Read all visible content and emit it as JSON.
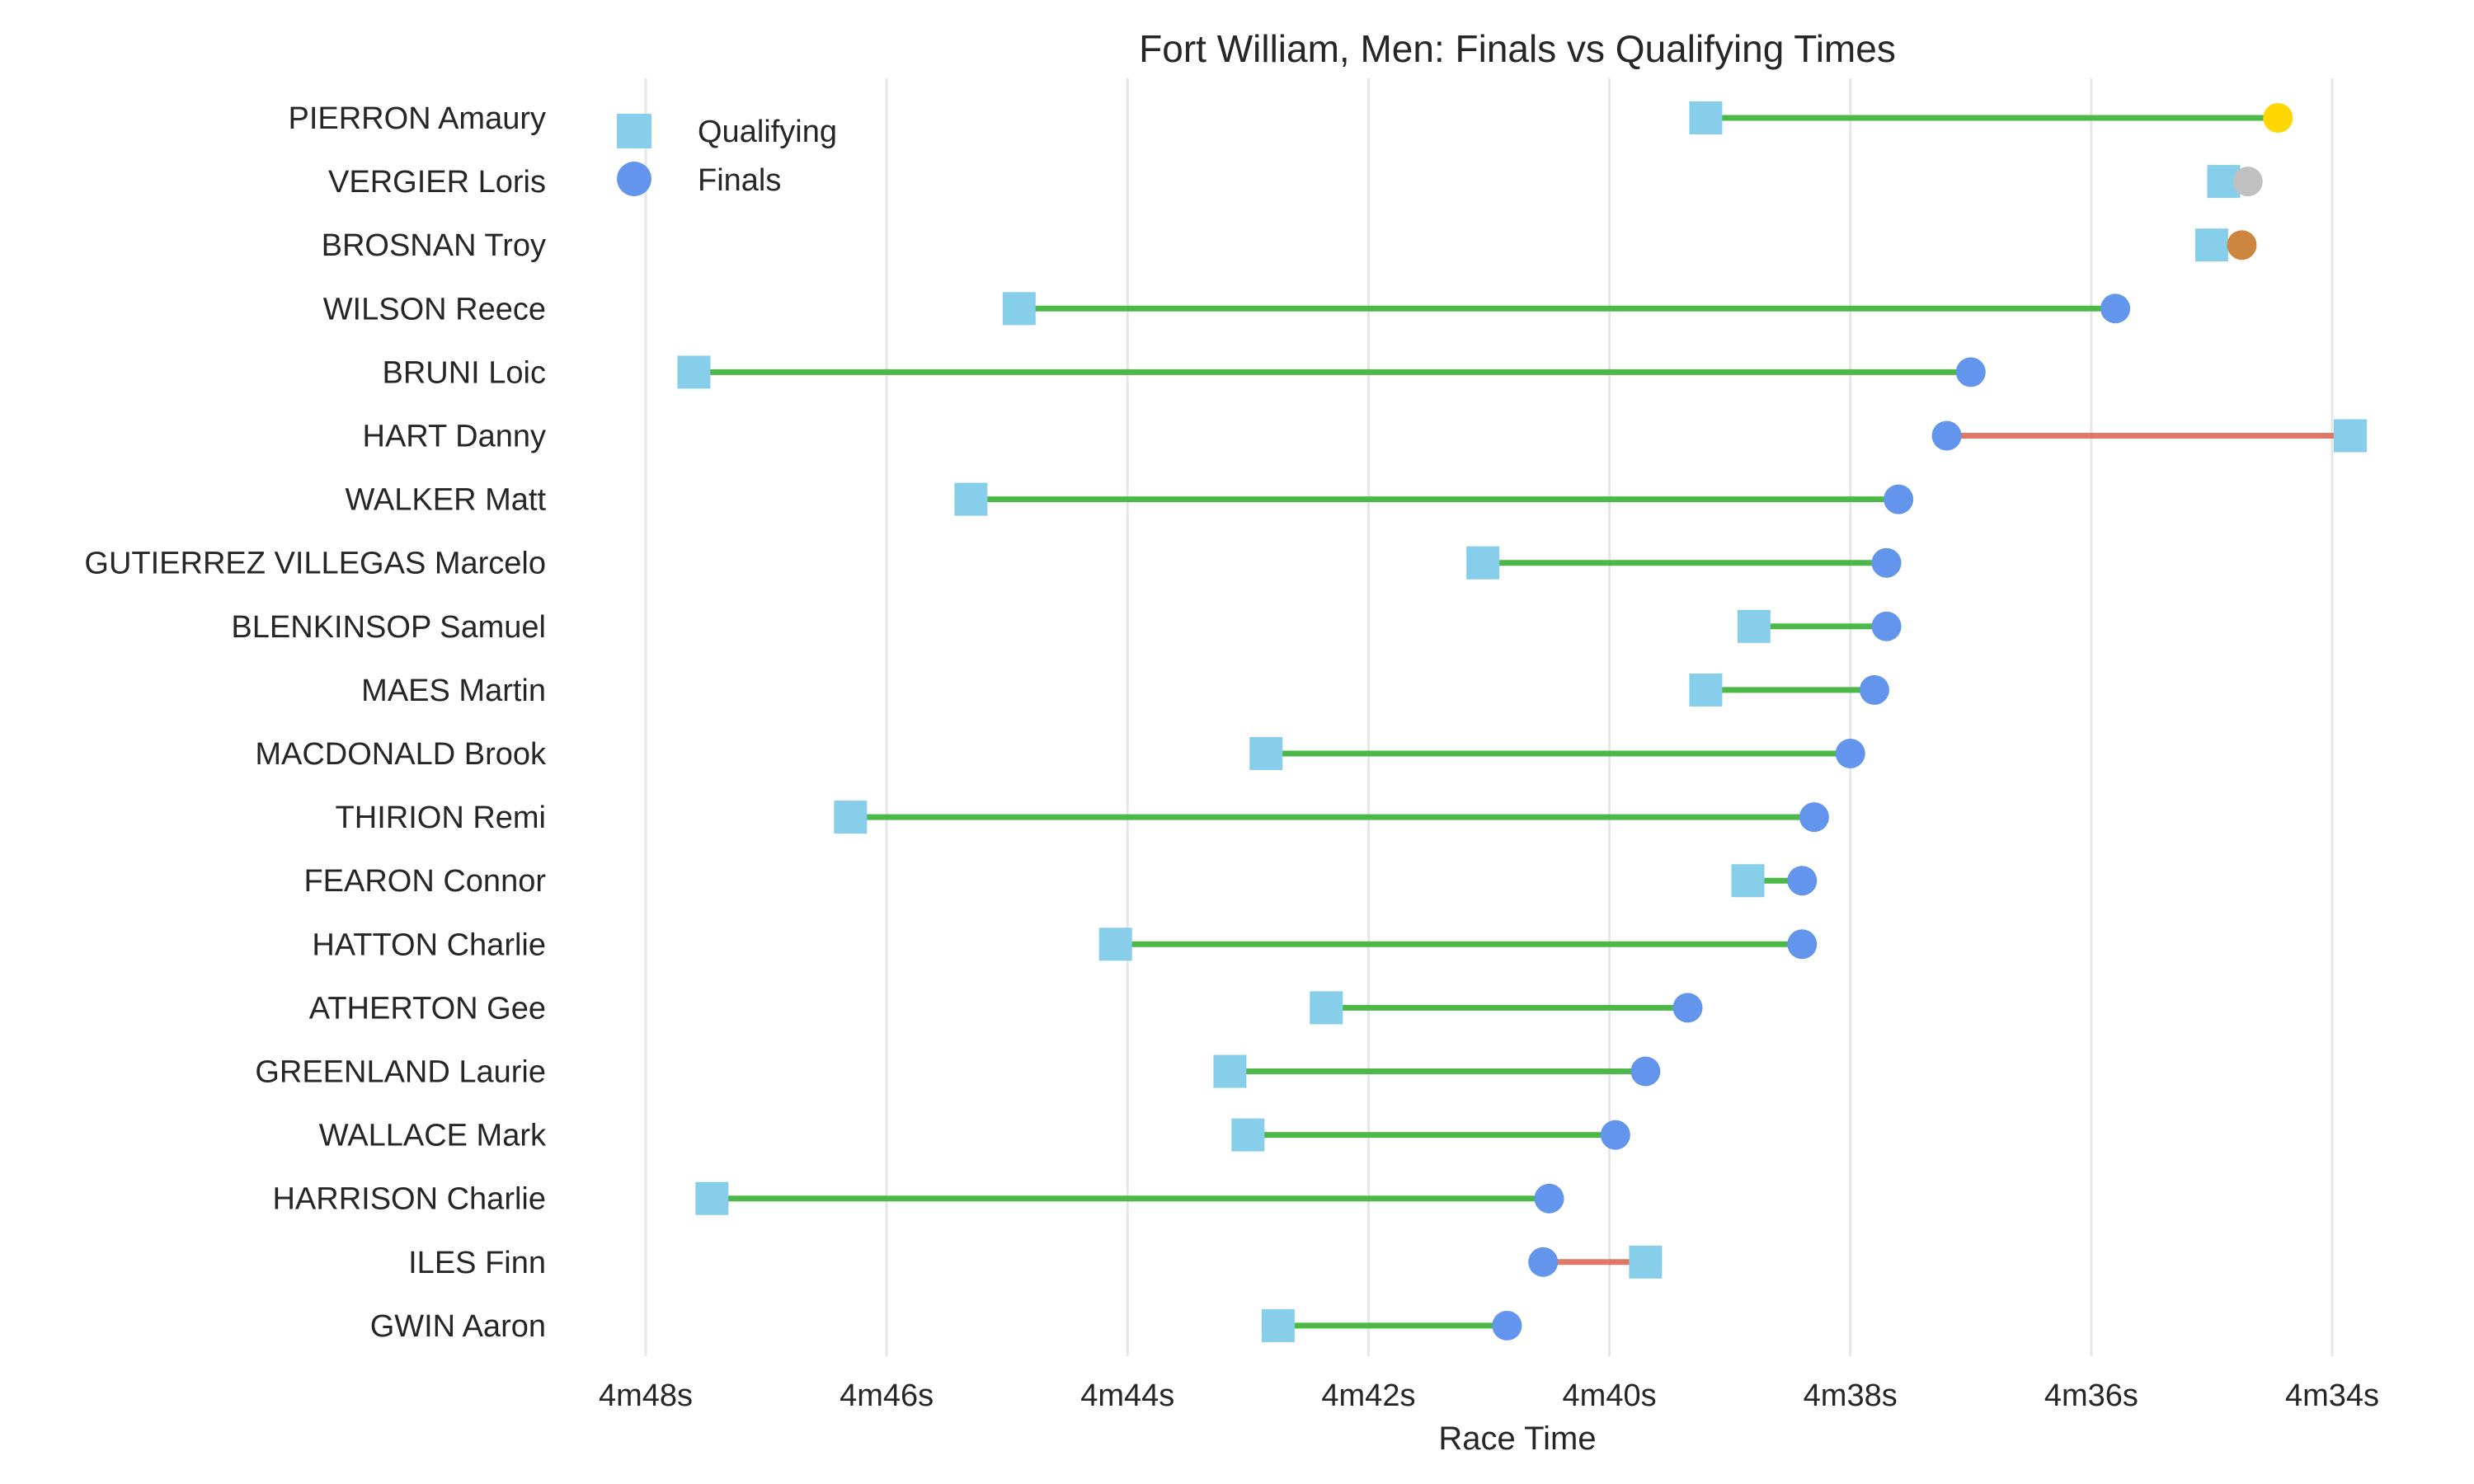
{
  "chart_data": {
    "type": "dumbbell",
    "title": "Fort William, Men: Finals vs Qualifying Times",
    "xlabel": "Race Time",
    "ylabel": "",
    "x_axis_reversed": true,
    "xlim_seconds": [
      289,
      273.4
    ],
    "x_ticks": [
      {
        "value": 288,
        "label": "4m48s"
      },
      {
        "value": 286,
        "label": "4m46s"
      },
      {
        "value": 284,
        "label": "4m44s"
      },
      {
        "value": 282,
        "label": "4m42s"
      },
      {
        "value": 280,
        "label": "4m40s"
      },
      {
        "value": 278,
        "label": "4m38s"
      },
      {
        "value": 276,
        "label": "4m36s"
      },
      {
        "value": 274,
        "label": "4m34s"
      }
    ],
    "grid": "vertical",
    "legend": {
      "placement": "top-left",
      "entries": [
        {
          "label": "Qualifying",
          "marker": "square"
        },
        {
          "label": "Finals",
          "marker": "circle"
        }
      ]
    },
    "colors": {
      "qualifying": "#87ceeb",
      "finals": "#6495ed",
      "improved_line": "#4cb848",
      "slower_line": "#e07868",
      "gold": "#ffd700",
      "silver": "#c0c0c0",
      "bronze": "#cd853f"
    },
    "riders": [
      {
        "name": "PIERRON Amaury",
        "qualifying": 279.2,
        "finals": 274.45,
        "medal": "gold"
      },
      {
        "name": "VERGIER Loris",
        "qualifying": 274.9,
        "finals": 274.7,
        "medal": "silver"
      },
      {
        "name": "BROSNAN Troy",
        "qualifying": 275.0,
        "finals": 274.75,
        "medal": "bronze"
      },
      {
        "name": "WILSON Reece",
        "qualifying": 284.9,
        "finals": 275.8,
        "medal": ""
      },
      {
        "name": "BRUNI Loic",
        "qualifying": 287.6,
        "finals": 277.0,
        "medal": ""
      },
      {
        "name": "HART Danny",
        "qualifying": 273.85,
        "finals": 277.2,
        "medal": ""
      },
      {
        "name": "WALKER Matt",
        "qualifying": 285.3,
        "finals": 277.6,
        "medal": ""
      },
      {
        "name": "GUTIERREZ VILLEGAS Marcelo",
        "qualifying": 281.05,
        "finals": 277.7,
        "medal": ""
      },
      {
        "name": "BLENKINSOP Samuel",
        "qualifying": 278.8,
        "finals": 277.7,
        "medal": ""
      },
      {
        "name": "MAES Martin",
        "qualifying": 279.2,
        "finals": 277.8,
        "medal": ""
      },
      {
        "name": "MACDONALD Brook",
        "qualifying": 282.85,
        "finals": 278.0,
        "medal": ""
      },
      {
        "name": "THIRION Remi",
        "qualifying": 286.3,
        "finals": 278.3,
        "medal": ""
      },
      {
        "name": "FEARON Connor",
        "qualifying": 278.85,
        "finals": 278.4,
        "medal": ""
      },
      {
        "name": "HATTON Charlie",
        "qualifying": 284.1,
        "finals": 278.4,
        "medal": ""
      },
      {
        "name": "ATHERTON Gee",
        "qualifying": 282.35,
        "finals": 279.35,
        "medal": ""
      },
      {
        "name": "GREENLAND Laurie",
        "qualifying": 283.15,
        "finals": 279.7,
        "medal": ""
      },
      {
        "name": "WALLACE Mark",
        "qualifying": 283.0,
        "finals": 279.95,
        "medal": ""
      },
      {
        "name": "HARRISON Charlie",
        "qualifying": 287.45,
        "finals": 280.5,
        "medal": ""
      },
      {
        "name": "ILES Finn",
        "qualifying": 279.7,
        "finals": 280.55,
        "medal": ""
      },
      {
        "name": "GWIN Aaron",
        "qualifying": 282.75,
        "finals": 280.85,
        "medal": ""
      }
    ]
  }
}
